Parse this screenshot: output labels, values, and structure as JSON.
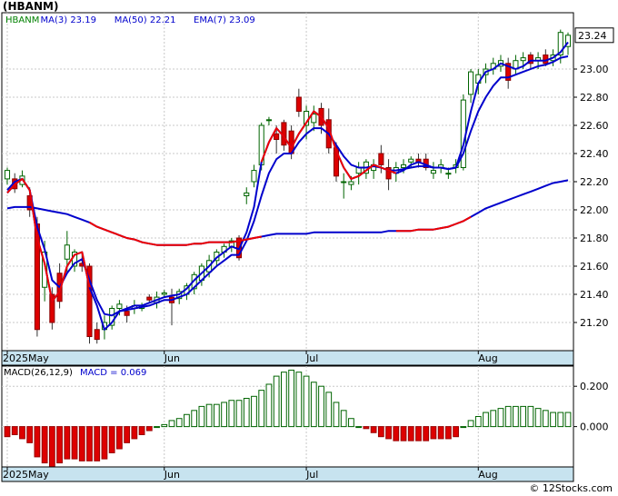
{
  "header": {
    "ticker": "(HBANM)",
    "credit": "© 12Stocks.com"
  },
  "chart_data": [
    {
      "type": "candlestick",
      "symbol": "HBANM",
      "legend": [
        {
          "label": "HBANM",
          "color": "#008000"
        },
        {
          "label": "MA(3)",
          "value": "23.19",
          "color": "#0000cc"
        },
        {
          "label": "MA(50)",
          "value": "22.21",
          "color": "#0000cc"
        },
        {
          "label": "EMA(7)",
          "value": "23.09",
          "color": "#0000cc"
        }
      ],
      "last_price_label": "23.24",
      "ylim": [
        21.0,
        23.4
      ],
      "y_ticks": [
        "21.20",
        "21.40",
        "21.60",
        "21.80",
        "22.00",
        "22.20",
        "22.40",
        "22.60",
        "22.80",
        "23.00"
      ],
      "x_labels": [
        {
          "label": "2025May",
          "index": 0
        },
        {
          "label": "Jun",
          "index": 21
        },
        {
          "label": "Jul",
          "index": 40
        },
        {
          "label": "Aug",
          "index": 63
        }
      ],
      "candles": [
        [
          22.22,
          22.3,
          22.18,
          22.28
        ],
        [
          22.22,
          22.26,
          22.12,
          22.15
        ],
        [
          22.18,
          22.28,
          22.16,
          22.24
        ],
        [
          22.1,
          22.16,
          21.95,
          22.0
        ],
        [
          21.9,
          21.95,
          21.1,
          21.15
        ],
        [
          21.45,
          21.78,
          21.35,
          21.7
        ],
        [
          21.4,
          21.45,
          21.15,
          21.2
        ],
        [
          21.55,
          21.62,
          21.3,
          21.35
        ],
        [
          21.65,
          21.85,
          21.55,
          21.75
        ],
        [
          21.6,
          21.72,
          21.56,
          21.7
        ],
        [
          21.62,
          21.7,
          21.56,
          21.6
        ],
        [
          21.6,
          21.62,
          21.05,
          21.1
        ],
        [
          21.15,
          21.2,
          21.05,
          21.08
        ],
        [
          21.15,
          21.25,
          21.08,
          21.2
        ],
        [
          21.18,
          21.32,
          21.15,
          21.3
        ],
        [
          21.3,
          21.36,
          21.25,
          21.33
        ],
        [
          21.28,
          21.32,
          21.2,
          21.25
        ],
        [
          21.3,
          21.36,
          21.26,
          21.32
        ],
        [
          21.3,
          21.34,
          21.28,
          21.32
        ],
        [
          21.38,
          21.4,
          21.34,
          21.36
        ],
        [
          21.34,
          21.42,
          21.3,
          21.38
        ],
        [
          21.4,
          21.43,
          21.38,
          21.41
        ],
        [
          21.38,
          21.44,
          21.18,
          21.34
        ],
        [
          21.37,
          21.44,
          21.33,
          21.42
        ],
        [
          21.4,
          21.48,
          21.36,
          21.46
        ],
        [
          21.44,
          21.56,
          21.4,
          21.54
        ],
        [
          21.5,
          21.62,
          21.46,
          21.6
        ],
        [
          21.56,
          21.68,
          21.52,
          21.64
        ],
        [
          21.64,
          21.72,
          21.6,
          21.7
        ],
        [
          21.7,
          21.76,
          21.66,
          21.74
        ],
        [
          21.74,
          21.8,
          21.7,
          21.78
        ],
        [
          21.8,
          21.82,
          21.64,
          21.66
        ],
        [
          22.1,
          22.16,
          22.04,
          22.12
        ],
        [
          22.2,
          22.32,
          22.16,
          22.28
        ],
        [
          22.32,
          22.62,
          22.28,
          22.6
        ],
        [
          22.64,
          22.66,
          22.6,
          22.64
        ],
        [
          22.54,
          22.6,
          22.4,
          22.5
        ],
        [
          22.62,
          22.64,
          22.42,
          22.46
        ],
        [
          22.56,
          22.6,
          22.36,
          22.4
        ],
        [
          22.8,
          22.86,
          22.66,
          22.7
        ],
        [
          22.6,
          22.74,
          22.5,
          22.7
        ],
        [
          22.62,
          22.74,
          22.56,
          22.68
        ],
        [
          22.72,
          22.76,
          22.54,
          22.6
        ],
        [
          22.64,
          22.72,
          22.4,
          22.44
        ],
        [
          22.44,
          22.48,
          22.2,
          22.24
        ],
        [
          22.2,
          22.26,
          22.08,
          22.2
        ],
        [
          22.18,
          22.24,
          22.14,
          22.2
        ],
        [
          22.26,
          22.34,
          22.18,
          22.3
        ],
        [
          22.26,
          22.36,
          22.22,
          22.34
        ],
        [
          22.28,
          22.36,
          22.22,
          22.32
        ],
        [
          22.4,
          22.46,
          22.26,
          22.32
        ],
        [
          22.3,
          22.36,
          22.14,
          22.22
        ],
        [
          22.26,
          22.34,
          22.2,
          22.3
        ],
        [
          22.3,
          22.36,
          22.26,
          22.32
        ],
        [
          22.34,
          22.38,
          22.3,
          22.36
        ],
        [
          22.36,
          22.4,
          22.3,
          22.34
        ],
        [
          22.36,
          22.4,
          22.28,
          22.3
        ],
        [
          22.26,
          22.34,
          22.22,
          22.28
        ],
        [
          22.3,
          22.36,
          22.26,
          22.32
        ],
        [
          22.26,
          22.3,
          22.22,
          22.26
        ],
        [
          22.3,
          22.36,
          22.26,
          22.32
        ],
        [
          22.3,
          22.82,
          22.28,
          22.78
        ],
        [
          22.82,
          23.0,
          22.76,
          22.98
        ],
        [
          22.9,
          23.0,
          22.82,
          22.96
        ],
        [
          22.96,
          23.04,
          22.9,
          23.0
        ],
        [
          23.0,
          23.08,
          22.96,
          23.04
        ],
        [
          23.02,
          23.1,
          22.98,
          23.06
        ],
        [
          23.04,
          23.08,
          22.86,
          22.92
        ],
        [
          23.0,
          23.1,
          22.96,
          23.06
        ],
        [
          23.06,
          23.12,
          23.0,
          23.08
        ],
        [
          23.1,
          23.12,
          23.0,
          23.04
        ],
        [
          23.06,
          23.12,
          23.0,
          23.08
        ],
        [
          23.1,
          23.14,
          23.02,
          23.04
        ],
        [
          23.06,
          23.14,
          23.02,
          23.1
        ],
        [
          23.1,
          23.28,
          23.04,
          23.26
        ],
        [
          23.16,
          23.26,
          23.1,
          23.24
        ]
      ],
      "ma3": [
        22.12,
        22.18,
        22.22,
        22.14,
        21.8,
        21.62,
        21.35,
        21.42,
        21.6,
        21.68,
        21.7,
        21.45,
        21.32,
        21.15,
        21.2,
        21.28,
        21.3,
        21.32,
        21.32,
        21.34,
        21.36,
        21.38,
        21.39,
        21.4,
        21.44,
        21.5,
        21.55,
        21.6,
        21.66,
        21.7,
        21.74,
        21.72,
        21.84,
        22.02,
        22.34,
        22.48,
        22.58,
        22.52,
        22.44,
        22.54,
        22.62,
        22.7,
        22.66,
        22.58,
        22.42,
        22.3,
        22.22,
        22.24,
        22.28,
        22.32,
        22.3,
        22.28,
        22.26,
        22.28,
        22.32,
        22.34,
        22.32,
        22.3,
        22.3,
        22.29,
        22.3,
        22.46,
        22.7,
        22.9,
        22.98,
        23.0,
        23.04,
        23.02,
        23.0,
        23.02,
        23.06,
        23.06,
        23.06,
        23.08,
        23.12,
        23.19
      ],
      "ema7": [
        22.14,
        22.2,
        22.22,
        22.14,
        21.88,
        21.72,
        21.5,
        21.45,
        21.55,
        21.62,
        21.65,
        21.5,
        21.36,
        21.26,
        21.25,
        21.28,
        21.29,
        21.3,
        21.31,
        21.32,
        21.34,
        21.36,
        21.36,
        21.38,
        21.4,
        21.45,
        21.5,
        21.55,
        21.6,
        21.64,
        21.68,
        21.68,
        21.78,
        21.92,
        22.1,
        22.26,
        22.36,
        22.4,
        22.4,
        22.48,
        22.54,
        22.58,
        22.58,
        22.54,
        22.46,
        22.38,
        22.32,
        22.3,
        22.3,
        22.31,
        22.3,
        22.28,
        22.28,
        22.29,
        22.3,
        22.31,
        22.31,
        22.3,
        22.3,
        22.29,
        22.3,
        22.4,
        22.56,
        22.7,
        22.8,
        22.88,
        22.94,
        22.94,
        22.96,
        22.98,
        23.0,
        23.02,
        23.03,
        23.05,
        23.08,
        23.09
      ],
      "ma50": [
        22.01,
        22.02,
        22.02,
        22.02,
        22.01,
        22.0,
        21.99,
        21.98,
        21.97,
        21.95,
        21.93,
        21.91,
        21.88,
        21.86,
        21.84,
        21.82,
        21.8,
        21.79,
        21.77,
        21.76,
        21.75,
        21.75,
        21.75,
        21.75,
        21.75,
        21.76,
        21.76,
        21.77,
        21.77,
        21.77,
        21.77,
        21.78,
        21.79,
        21.8,
        21.81,
        21.82,
        21.83,
        21.83,
        21.83,
        21.83,
        21.83,
        21.84,
        21.84,
        21.84,
        21.84,
        21.84,
        21.84,
        21.84,
        21.84,
        21.84,
        21.84,
        21.85,
        21.85,
        21.85,
        21.85,
        21.86,
        21.86,
        21.86,
        21.87,
        21.88,
        21.9,
        21.92,
        21.95,
        21.98,
        22.01,
        22.03,
        22.05,
        22.07,
        22.09,
        22.11,
        22.13,
        22.15,
        22.17,
        22.19,
        22.2,
        22.21
      ],
      "reds": [
        {
          "from": 0,
          "to": 11,
          "series": "ma3"
        },
        {
          "from": 11,
          "to": 34,
          "series": "ma50"
        },
        {
          "from": 34,
          "to": 52,
          "series": "ma3"
        },
        {
          "from": 52,
          "to": 62,
          "series": "ma50"
        }
      ]
    },
    {
      "type": "bar",
      "title": "MACD(26,12,9)",
      "value_label": "MACD = 0.069",
      "ylim": [
        -0.2,
        0.3
      ],
      "y_ticks": [
        "0.200",
        "0.000"
      ],
      "x_labels": [
        {
          "label": "2025May",
          "index": 0
        },
        {
          "label": "Jun",
          "index": 21
        },
        {
          "label": "Jul",
          "index": 40
        },
        {
          "label": "Aug",
          "index": 63
        }
      ],
      "values": [
        -0.05,
        -0.04,
        -0.06,
        -0.08,
        -0.15,
        -0.18,
        -0.2,
        -0.18,
        -0.16,
        -0.16,
        -0.17,
        -0.17,
        -0.17,
        -0.16,
        -0.13,
        -0.11,
        -0.08,
        -0.06,
        -0.04,
        -0.02,
        0,
        0.01,
        0.03,
        0.04,
        0.06,
        0.08,
        0.1,
        0.11,
        0.11,
        0.12,
        0.13,
        0.13,
        0.14,
        0.15,
        0.18,
        0.21,
        0.25,
        0.27,
        0.28,
        0.27,
        0.25,
        0.22,
        0.2,
        0.17,
        0.12,
        0.08,
        0.04,
        0,
        -0.01,
        -0.03,
        -0.05,
        -0.06,
        -0.07,
        -0.07,
        -0.07,
        -0.07,
        -0.07,
        -0.06,
        -0.06,
        -0.06,
        -0.05,
        0,
        0.03,
        0.05,
        0.07,
        0.08,
        0.09,
        0.1,
        0.1,
        0.1,
        0.1,
        0.09,
        0.08,
        0.07,
        0.07,
        0.07
      ]
    }
  ]
}
